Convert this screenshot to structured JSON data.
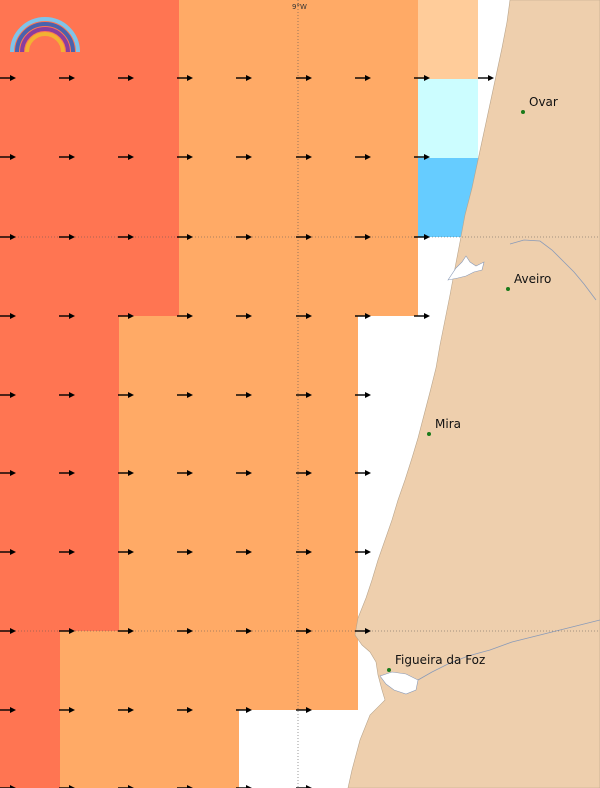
{
  "map": {
    "meridian_label": "9°W",
    "palette": {
      "red": "#ff7552",
      "orange": "#ffaa66",
      "peach": "#ffcc9a",
      "cyan": "#ccfdff",
      "blue": "#66ccff",
      "land": "#eecfad",
      "sea": "#ffffff",
      "river": "#8a9bb8",
      "town": "#1a7a1a",
      "arrow": "#000000"
    },
    "towns": [
      {
        "name": "Ovar"
      },
      {
        "name": "Aveiro"
      },
      {
        "name": "Mira"
      },
      {
        "name": "Figueira da Foz"
      }
    ],
    "logo": {
      "icon": "rainbow-logo-icon"
    }
  }
}
